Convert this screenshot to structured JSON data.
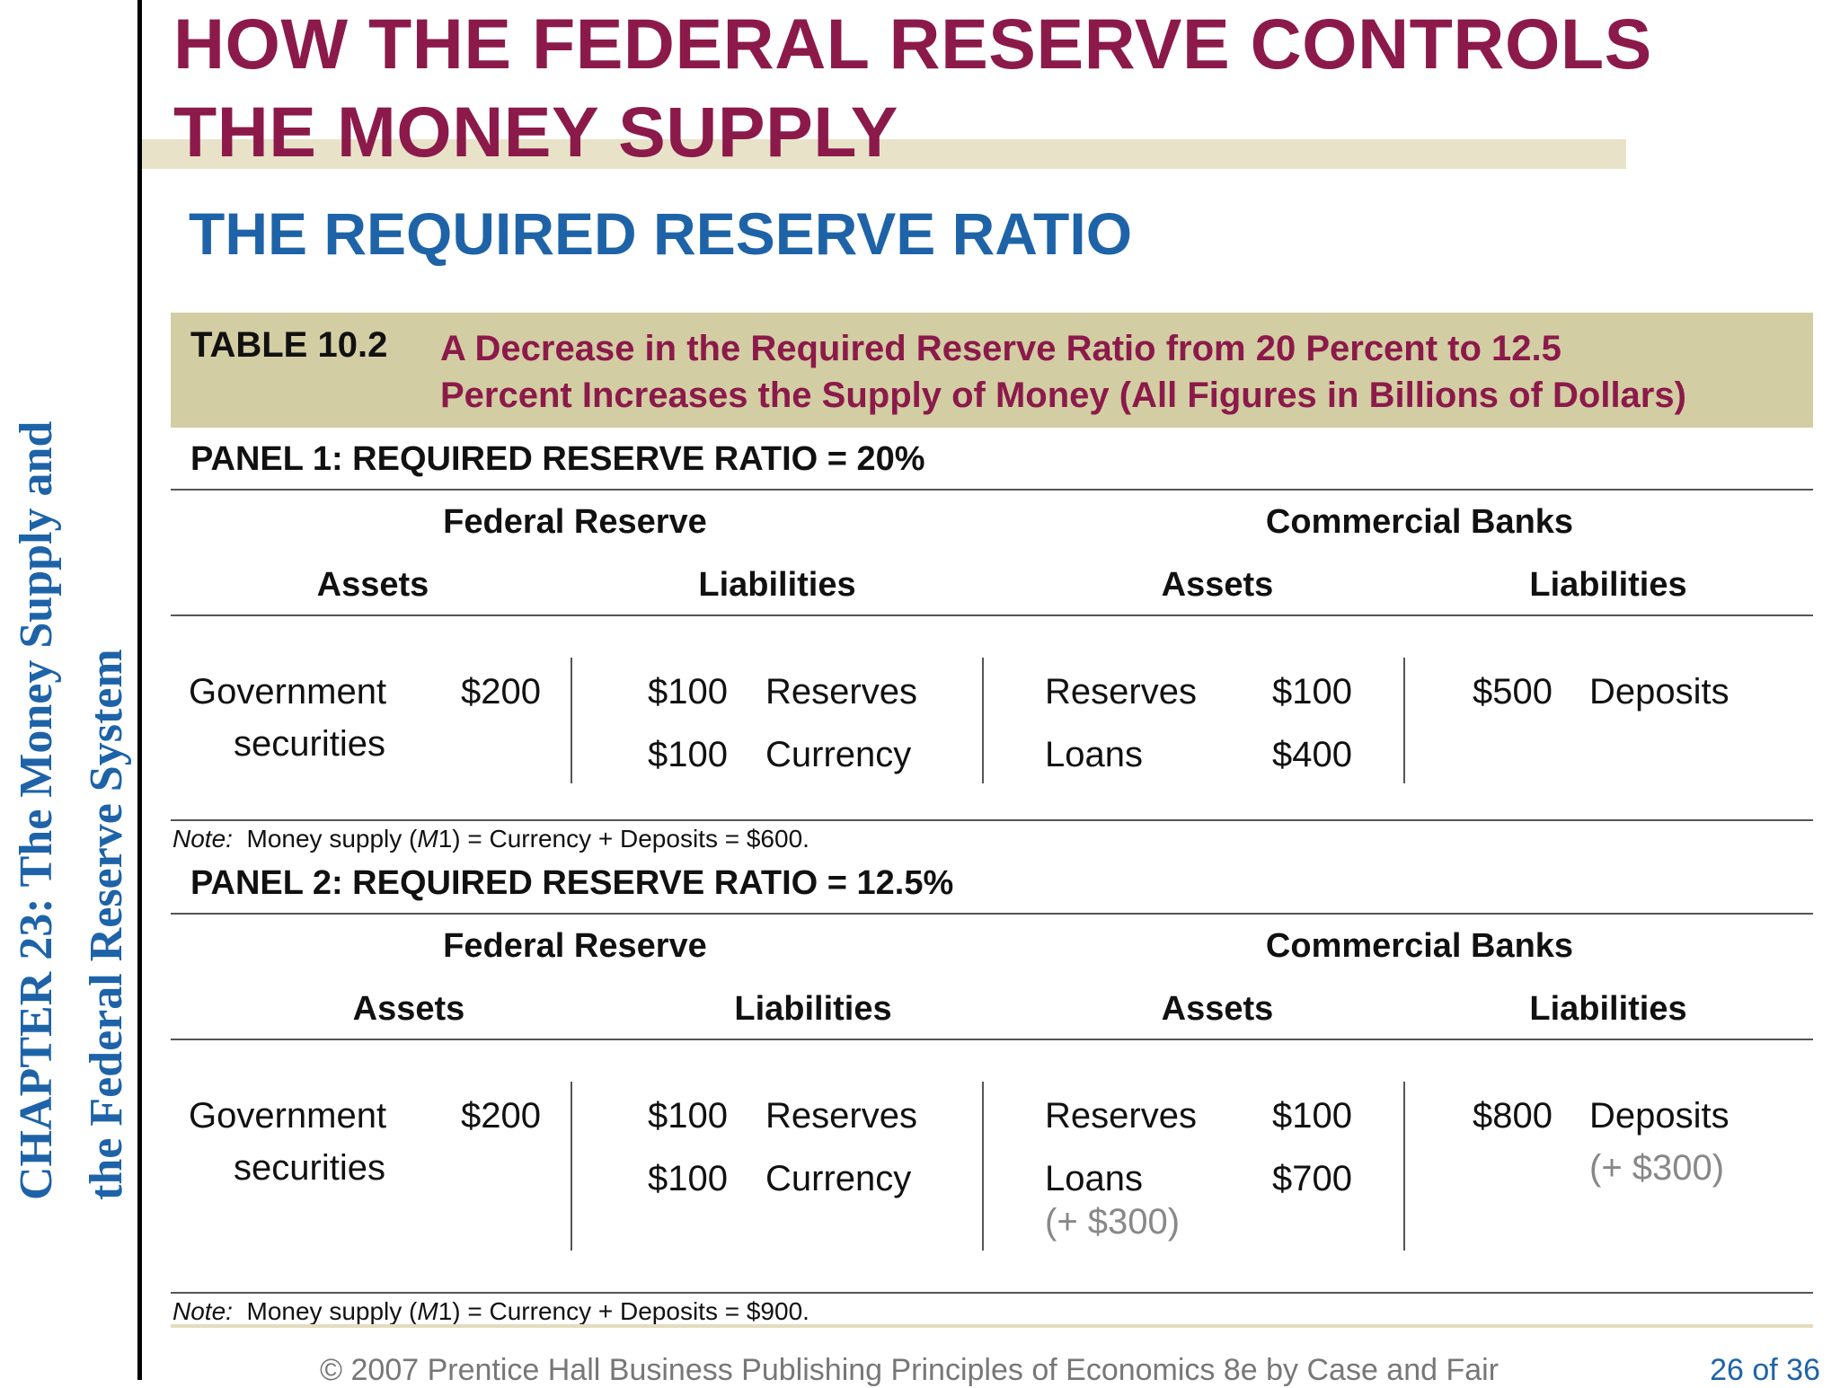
{
  "chapter": {
    "line1": "CHAPTER 23:  The Money Supply and",
    "line2": "the Federal Reserve System"
  },
  "title": {
    "line1": "HOW THE FEDERAL RESERVE CONTROLS",
    "line2": "THE MONEY SUPPLY"
  },
  "subtitle": "THE REQUIRED RESERVE RATIO",
  "table": {
    "number": "TABLE 10.2",
    "caption_line1": "A Decrease in the Required Reserve Ratio from 20 Percent to 12.5",
    "caption_line2": "Percent Increases the Supply of Money (All Figures in Billions of Dollars)"
  },
  "panel1": {
    "title": "PANEL 1:  REQUIRED RESERVE RATIO = 20%",
    "fed_header": "Federal Reserve",
    "banks_header": "Commercial Banks",
    "fed_assets_header": "Assets",
    "fed_liabilities_header": "Liabilities",
    "bank_assets_header": "Assets",
    "bank_liabilities_header": "Liabilities",
    "fed_assets": {
      "label1": "Government",
      "label2": "securities",
      "value": "$200"
    },
    "fed_liabilities": [
      {
        "value": "$100",
        "label": "Reserves"
      },
      {
        "value": "$100",
        "label": "Currency"
      }
    ],
    "bank_assets": [
      {
        "label": "Reserves",
        "value": "$100"
      },
      {
        "label": "Loans",
        "value": "$400"
      }
    ],
    "bank_liabilities": {
      "value": "$500",
      "label": "Deposits"
    },
    "note": {
      "prefix": "Note:",
      "text1": "Money supply (",
      "m": "M",
      "text2": "1) = Currency + Deposits = $600."
    }
  },
  "panel2": {
    "title": "PANEL 2:  REQUIRED RESERVE RATIO = 12.5%",
    "fed_header": "Federal Reserve",
    "banks_header": "Commercial Banks",
    "fed_assets_header": "Assets",
    "fed_liabilities_header": "Liabilities",
    "bank_assets_header": "Assets",
    "bank_liabilities_header": "Liabilities",
    "fed_assets": {
      "label1": "Government",
      "label2": "securities",
      "value": "$200"
    },
    "fed_liabilities": [
      {
        "value": "$100",
        "label": "Reserves"
      },
      {
        "value": "$100",
        "label": "Currency"
      }
    ],
    "bank_assets": [
      {
        "label": "Reserves",
        "value": "$100"
      },
      {
        "label": "Loans",
        "value": "$700"
      }
    ],
    "bank_assets_change": "(+ $300)",
    "bank_liabilities": {
      "value": "$800",
      "label": "Deposits",
      "change": "(+ $300)"
    },
    "note": {
      "prefix": "Note:",
      "text1": "Money supply (",
      "m": "M",
      "text2": "1) = Currency + Deposits = $900."
    }
  },
  "footer": {
    "copyright": "© 2007 Prentice Hall Business Publishing   Principles of Economics 8e by Case and Fair",
    "page": "26 of 36"
  },
  "colors": {
    "title": "#8b1a4a",
    "accent_blue": "#1e63a8",
    "caption_bar": "#d3cda3",
    "title_band": "#e8e3c8",
    "change_text": "#888888"
  }
}
